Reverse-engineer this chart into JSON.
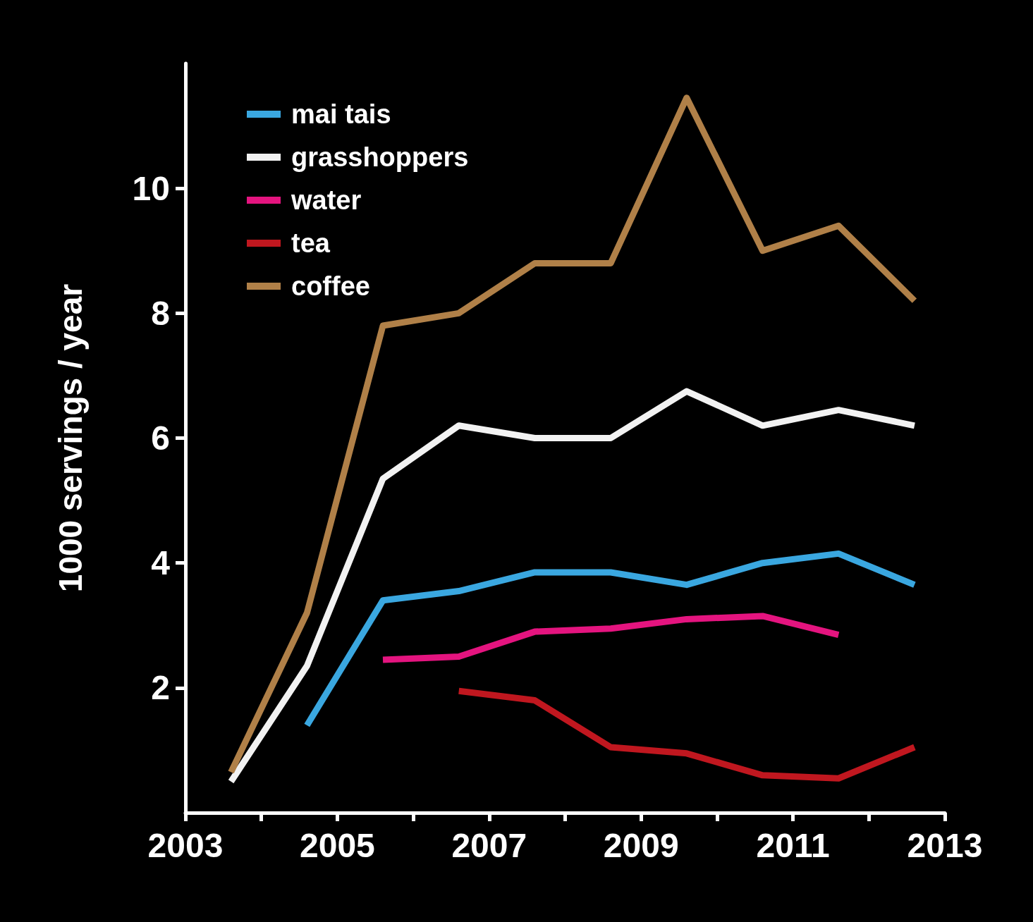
{
  "chart_data": {
    "type": "line",
    "ylabel": "1000 servings / year",
    "xlim": [
      2003,
      2013
    ],
    "xticks": [
      2003,
      {
        "value": 2004,
        "label": null
      },
      2005,
      {
        "value": 2006,
        "label": null
      },
      2007,
      {
        "value": 2008,
        "label": null
      },
      2009,
      {
        "value": 2010,
        "label": null
      },
      2011,
      {
        "value": 2012,
        "label": null
      },
      2013
    ],
    "ylim": [
      0,
      12
    ],
    "yticks": [
      2,
      4,
      6,
      8,
      10
    ],
    "grid": false,
    "legend": "top left",
    "marker": "none",
    "line_style": "solid",
    "series": [
      {
        "name": "mai tais",
        "color": "#3aa7e0",
        "x": [
          2004.6,
          2005.6,
          2006.6,
          2007.6,
          2008.6,
          2009.6,
          2010.6,
          2011.6,
          2012.6
        ],
        "values": [
          1.4,
          3.4,
          3.55,
          3.85,
          3.85,
          3.65,
          4.0,
          4.15,
          3.65
        ]
      },
      {
        "name": "grasshoppers",
        "color": "#f2f2f2",
        "x": [
          2003.6,
          2004.6,
          2005.6,
          2006.6,
          2007.6,
          2008.6,
          2009.6,
          2010.6,
          2011.6,
          2012.6
        ],
        "values": [
          0.5,
          2.35,
          5.35,
          6.2,
          6.0,
          6.0,
          6.75,
          6.2,
          6.45,
          6.2
        ]
      },
      {
        "name": "water",
        "color": "#e4147f",
        "x": [
          2005.6,
          2006.6,
          2007.6,
          2008.6,
          2009.6,
          2010.6,
          2011.6
        ],
        "values": [
          2.45,
          2.5,
          2.9,
          2.95,
          3.1,
          3.15,
          2.85
        ]
      },
      {
        "name": "tea",
        "color": "#c0171f",
        "x": [
          2006.6,
          2007.6,
          2008.6,
          2009.6,
          2010.6,
          2011.6,
          2012.6
        ],
        "values": [
          1.95,
          1.8,
          1.05,
          0.95,
          0.6,
          0.55,
          1.05
        ]
      },
      {
        "name": "coffee",
        "color": "#b08048",
        "x": [
          2003.6,
          2004.6,
          2005.6,
          2006.6,
          2007.6,
          2008.6,
          2009.6,
          2010.6,
          2011.6,
          2012.6
        ],
        "values": [
          0.65,
          3.2,
          7.8,
          8.0,
          8.8,
          8.8,
          11.45,
          9.0,
          9.4,
          8.2
        ]
      }
    ]
  }
}
